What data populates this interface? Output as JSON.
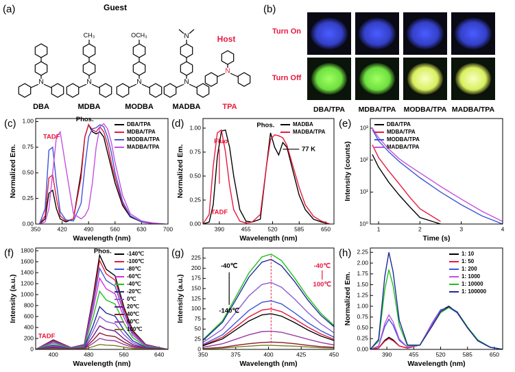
{
  "figure_panels": {
    "a": {
      "label": "(a)",
      "guest_heading": "Guest",
      "host_heading": "Host",
      "guests": [
        "DBA",
        "MDBA",
        "MODBA",
        "MADBA"
      ],
      "host": "TPA",
      "substituents": [
        "CH₃",
        "OCH₃"
      ],
      "atom": "N"
    },
    "b": {
      "label": "(b)",
      "rows": [
        "Turn On",
        "Turn Off"
      ],
      "columns": [
        "DBA/TPA",
        "MDBA/TPA",
        "MODBA/TPA",
        "MADBA/TPA"
      ]
    }
  },
  "chart_data": [
    {
      "type": "line",
      "label": "(c)",
      "xlabel": "Wavelength (nm)",
      "ylabel": "Normalized Em.",
      "xlim": [
        350,
        700
      ],
      "xticks": [
        350,
        420,
        490,
        560,
        630,
        700
      ],
      "ylim": [
        0,
        1.03
      ],
      "yticks": [
        {
          "value": 0,
          "label": "0.00"
        },
        {
          "value": 0.25,
          "label": "0.25"
        },
        {
          "value": 0.5,
          "label": "0.50"
        },
        {
          "value": 0.75,
          "label": "0.75"
        },
        {
          "value": 1,
          "label": "1.00"
        }
      ],
      "legend": "upper right",
      "annotations": [
        "TADF",
        "Phos."
      ],
      "x": [
        360,
        375,
        385,
        395,
        405,
        415,
        430,
        450,
        470,
        480,
        490,
        500,
        510,
        520,
        530,
        540,
        550,
        560,
        580,
        600,
        630,
        660,
        690
      ],
      "series": [
        {
          "name": "DBA/TPA",
          "color": "#000000",
          "values": [
            0,
            0.05,
            0.3,
            0.33,
            0.15,
            0.05,
            0.02,
            0.05,
            0.5,
            0.85,
            0.97,
            0.9,
            0.88,
            0.9,
            0.85,
            0.7,
            0.55,
            0.4,
            0.18,
            0.07,
            0.02,
            0.005,
            0
          ]
        },
        {
          "name": "MDBA/TPA",
          "color": "#e8173c",
          "values": [
            0,
            0.08,
            0.45,
            0.48,
            0.25,
            0.08,
            0.03,
            0.05,
            0.45,
            0.85,
            0.97,
            0.92,
            0.9,
            0.95,
            0.9,
            0.78,
            0.6,
            0.45,
            0.2,
            0.08,
            0.02,
            0.005,
            0
          ]
        },
        {
          "name": "MODBA/TPA",
          "color": "#3a55d8",
          "values": [
            0,
            0.15,
            0.72,
            0.75,
            0.4,
            0.12,
            0.04,
            0.03,
            0.2,
            0.55,
            0.85,
            0.93,
            0.94,
            0.97,
            0.95,
            0.85,
            0.7,
            0.5,
            0.22,
            0.08,
            0.02,
            0.01,
            0
          ]
        },
        {
          "name": "MADBA/TPA",
          "color": "#c44fe0",
          "values": [
            0,
            0.02,
            0.15,
            0.5,
            0.85,
            0.9,
            0.55,
            0.1,
            0.05,
            0.08,
            0.15,
            0.4,
            0.75,
            0.95,
            0.98,
            0.93,
            0.8,
            0.6,
            0.28,
            0.1,
            0.03,
            0.01,
            0
          ]
        }
      ]
    },
    {
      "type": "line",
      "label": "(d)",
      "xlabel": "Wavelength (nm)",
      "ylabel": "Normalized Em.",
      "xlim": [
        350,
        670
      ],
      "xticks": [
        390,
        455,
        520,
        585,
        650
      ],
      "ylim": [
        0,
        1.1
      ],
      "yticks": [
        {
          "value": 0,
          "label": "0.00"
        },
        {
          "value": 0.25,
          "label": "0.25"
        },
        {
          "value": 0.5,
          "label": "0.50"
        },
        {
          "value": 0.75,
          "label": "0.75"
        },
        {
          "value": 1,
          "label": "1.00"
        }
      ],
      "legend": "upper right",
      "annotations": [
        "Fluo.",
        "Phos.",
        "TADF",
        "77 K"
      ],
      "x": [
        350,
        365,
        375,
        385,
        395,
        405,
        415,
        425,
        440,
        455,
        470,
        490,
        505,
        515,
        525,
        535,
        545,
        555,
        570,
        585,
        600,
        620,
        640,
        660
      ],
      "series": [
        {
          "name": "MADBA",
          "color": "#000000",
          "values": [
            0,
            0.02,
            0.2,
            0.7,
            0.97,
            0.98,
            0.8,
            0.5,
            0.15,
            0.03,
            0.02,
            0.05,
            0.6,
            0.95,
            0.8,
            0.72,
            0.85,
            0.8,
            0.55,
            0.3,
            0.15,
            0.05,
            0.02,
            0
          ]
        },
        {
          "name": "MADBA/TPA",
          "color": "#e8173c",
          "values": [
            0,
            0.1,
            0.6,
            0.95,
            0.98,
            0.75,
            0.4,
            0.15,
            0.03,
            0.01,
            0.02,
            0.1,
            0.6,
            0.88,
            0.93,
            0.92,
            0.9,
            0.82,
            0.6,
            0.38,
            0.2,
            0.08,
            0.03,
            0
          ]
        }
      ]
    },
    {
      "type": "line",
      "label": "(e)",
      "xlabel": "Time (s)",
      "ylabel": "Intensity (counts)",
      "log_y": true,
      "xlim": [
        0.8,
        4
      ],
      "xticks": [
        1,
        2,
        3,
        4
      ],
      "ylim": [
        1,
        2000
      ],
      "yticks": [
        {
          "value": 1,
          "label": "10⁰"
        },
        {
          "value": 10,
          "label": "10¹"
        },
        {
          "value": 100,
          "label": "10²"
        },
        {
          "value": 1000,
          "label": "10³"
        }
      ],
      "legend": "upper left",
      "x": [
        0.85,
        1,
        1.25,
        1.5,
        1.75,
        2,
        2.5,
        3,
        3.5,
        4
      ],
      "series": [
        {
          "name": "DBA/TPA",
          "color": "#000000",
          "values": [
            150,
            60,
            20,
            8,
            3.5,
            1.6,
            1,
            null,
            null,
            null
          ]
        },
        {
          "name": "MDBA/TPA",
          "color": "#e8173c",
          "values": [
            300,
            120,
            45,
            18,
            7,
            3,
            1.2,
            null,
            null,
            null
          ]
        },
        {
          "name": "MODBA/TPA",
          "color": "#3a55d8",
          "values": [
            900,
            400,
            180,
            90,
            50,
            28,
            10,
            4,
            1.8,
            1
          ]
        },
        {
          "name": "MADBA/TPA",
          "color": "#c44fe0",
          "values": [
            1000,
            500,
            220,
            110,
            65,
            40,
            15,
            6,
            2.5,
            1.2
          ]
        }
      ]
    },
    {
      "type": "line",
      "label": "(f)",
      "xlabel": "Wavelength (nm)",
      "ylabel": "Intensity (a.u.)",
      "xlim": [
        360,
        660
      ],
      "xticks": [
        400,
        480,
        560,
        640
      ],
      "ylim": [
        0,
        1850
      ],
      "yticks": [
        0,
        200,
        400,
        600,
        800,
        1000,
        1200,
        1400,
        1600,
        1800
      ],
      "legend": "upper right",
      "annotations": [
        "Phos.",
        "TADF"
      ],
      "x": [
        360,
        400,
        440,
        470,
        490,
        505,
        520,
        540,
        560,
        580,
        610,
        660
      ],
      "series": [
        {
          "name": "-140℃",
          "color": "#000000",
          "values": [
            0,
            172,
            34,
            86,
            946,
            1720,
            1462,
            1342,
            774,
            344,
            86,
            0
          ]
        },
        {
          "name": "-100℃",
          "color": "#e8173c",
          "values": [
            0,
            162,
            32,
            81,
            891,
            1620,
            1377,
            1264,
            729,
            324,
            81,
            0
          ]
        },
        {
          "name": "-80℃",
          "color": "#3a55d8",
          "values": [
            0,
            148,
            30,
            74,
            814,
            1480,
            1258,
            1154,
            666,
            296,
            74,
            0
          ]
        },
        {
          "name": "-60℃",
          "color": "#d42fd4",
          "values": [
            0,
            130,
            26,
            65,
            715,
            1300,
            1105,
            1014,
            585,
            260,
            65,
            0
          ]
        },
        {
          "name": "-40℃",
          "color": "#1fbf1f",
          "values": [
            0,
            106,
            21,
            53,
            583,
            1060,
            901,
            827,
            477,
            212,
            53,
            0
          ]
        },
        {
          "name": "-20℃",
          "color": "#1a2a9a",
          "values": [
            0,
            78,
            16,
            39,
            429,
            780,
            663,
            608,
            351,
            156,
            39,
            0
          ]
        },
        {
          "name": "0℃",
          "color": "#8a5ad8",
          "values": [
            0,
            60,
            12,
            30,
            330,
            600,
            510,
            468,
            270,
            120,
            30,
            0
          ]
        },
        {
          "name": "20℃",
          "color": "#6a1a8a",
          "values": [
            0,
            43,
            9,
            22,
            237,
            430,
            366,
            335,
            194,
            86,
            22,
            0
          ]
        },
        {
          "name": "40℃",
          "color": "#8a1a2a",
          "values": [
            0,
            30,
            6,
            15,
            165,
            300,
            255,
            234,
            135,
            60,
            15,
            0
          ]
        },
        {
          "name": "60℃",
          "color": "#9a3aa8",
          "values": [
            0,
            20,
            4,
            10,
            110,
            200,
            170,
            156,
            90,
            40,
            10,
            0
          ]
        },
        {
          "name": "100℃",
          "color": "#7a7a1a",
          "values": [
            0,
            9,
            2,
            5,
            50,
            90,
            77,
            70,
            41,
            18,
            5,
            0
          ]
        }
      ]
    },
    {
      "type": "line",
      "label": "(g)",
      "xlabel": "Wavelength (nm)",
      "ylabel": "Intensity (a.u.)",
      "xlim": [
        350,
        450
      ],
      "xticks": [
        350,
        375,
        400,
        425,
        450
      ],
      "ylim": [
        0,
        250
      ],
      "yticks": [
        0,
        25,
        50,
        75,
        100,
        125,
        150,
        175,
        200,
        225
      ],
      "annotations": [
        "-40℃",
        "-140℃",
        "-40℃",
        "100℃"
      ],
      "x": [
        350,
        365,
        375,
        385,
        395,
        402,
        410,
        420,
        430,
        440,
        450
      ],
      "series": [
        {
          "color": "#1fbf1f",
          "values": [
            24,
            71,
            129,
            188,
            228,
            235,
            219,
            176,
            129,
            89,
            59
          ]
        },
        {
          "color": "#1a2a9a",
          "values": [
            22,
            67,
            122,
            178,
            215,
            222,
            206,
            167,
            122,
            84,
            56
          ]
        },
        {
          "color": "#8a5ad8",
          "values": [
            17,
            50,
            91,
            132,
            160,
            165,
            153,
            124,
            91,
            63,
            41
          ]
        },
        {
          "color": "#3a55d8",
          "values": [
            12,
            36,
            66,
            96,
            116,
            120,
            112,
            90,
            66,
            46,
            30
          ]
        },
        {
          "color": "#e8173c",
          "values": [
            10,
            30,
            55,
            80,
            97,
            100,
            93,
            75,
            55,
            38,
            25
          ]
        },
        {
          "color": "#000000",
          "values": [
            9,
            26,
            48,
            70,
            85,
            88,
            82,
            66,
            48,
            33,
            22
          ]
        },
        {
          "color": "#9a3aa8",
          "values": [
            5,
            14,
            25,
            36,
            44,
            45,
            42,
            34,
            25,
            17,
            11
          ]
        },
        {
          "color": "#8a1a2a",
          "values": [
            2,
            5,
            10,
            14,
            17,
            18,
            17,
            14,
            10,
            7,
            5
          ]
        },
        {
          "color": "#7a7a1a",
          "values": [
            1,
            3,
            6,
            8,
            10,
            10,
            9,
            8,
            6,
            4,
            3
          ]
        }
      ]
    },
    {
      "type": "line",
      "label": "(h)",
      "xlabel": "Wavelength (nm)",
      "ylabel": "Normalized Em.",
      "xlim": [
        350,
        670
      ],
      "xticks": [
        390,
        455,
        520,
        585,
        650
      ],
      "ylim": [
        0,
        2.35
      ],
      "yticks": [
        {
          "value": 0,
          "label": "0.00"
        },
        {
          "value": 0.25,
          "label": "0.25"
        },
        {
          "value": 0.5,
          "label": "0.50"
        },
        {
          "value": 0.75,
          "label": "0.75"
        },
        {
          "value": 1,
          "label": "1.00"
        },
        {
          "value": 1.25,
          "label": "1.25"
        },
        {
          "value": 1.5,
          "label": "1.50"
        },
        {
          "value": 1.75,
          "label": "1.75"
        },
        {
          "value": 2,
          "label": "2.00"
        },
        {
          "value": 2.25,
          "label": "2.25"
        }
      ],
      "legend": "upper right",
      "x": [
        350,
        370,
        385,
        395,
        405,
        420,
        440,
        470,
        500,
        520,
        540,
        560,
        585,
        610,
        640,
        670
      ],
      "series": [
        {
          "name": "1: 10",
          "color": "#000000",
          "values": [
            0,
            0.03,
            0.21,
            0.28,
            0.22,
            0.08,
            0.03,
            0.1,
            0.6,
            0.9,
            1.0,
            0.85,
            0.5,
            0.2,
            0.05,
            0
          ]
        },
        {
          "name": "1: 50",
          "color": "#e8173c",
          "values": [
            0,
            0.03,
            0.19,
            0.25,
            0.2,
            0.08,
            0.03,
            0.1,
            0.58,
            0.88,
            0.98,
            0.87,
            0.52,
            0.2,
            0.05,
            0
          ]
        },
        {
          "name": "1: 200",
          "color": "#3a55d8",
          "values": [
            0,
            0.07,
            0.53,
            0.7,
            0.56,
            0.21,
            0.05,
            0.1,
            0.62,
            0.92,
            0.97,
            0.85,
            0.5,
            0.2,
            0.05,
            0
          ]
        },
        {
          "name": "1: 1000",
          "color": "#c44fe0",
          "values": [
            0,
            0.08,
            0.6,
            0.8,
            0.64,
            0.24,
            0.05,
            0.1,
            0.6,
            0.9,
            0.98,
            0.86,
            0.5,
            0.2,
            0.05,
            0
          ]
        },
        {
          "name": "1: 10000",
          "color": "#1fbf1f",
          "values": [
            0,
            0.19,
            1.39,
            1.85,
            1.48,
            0.56,
            0.08,
            0.1,
            0.55,
            0.85,
            0.97,
            0.87,
            0.52,
            0.22,
            0.05,
            0
          ]
        },
        {
          "name": "1: 100000",
          "color": "#1a2a9a",
          "values": [
            0,
            0.23,
            1.69,
            2.25,
            1.8,
            0.68,
            0.1,
            0.1,
            0.55,
            0.88,
            0.99,
            0.86,
            0.5,
            0.2,
            0.05,
            0
          ]
        }
      ]
    }
  ]
}
